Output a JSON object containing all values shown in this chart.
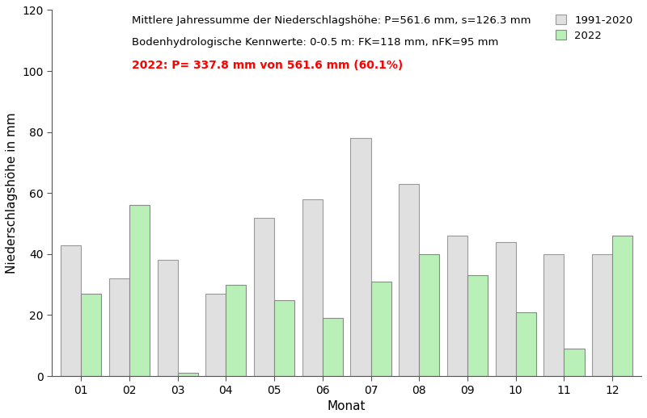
{
  "months": [
    "01",
    "02",
    "03",
    "04",
    "05",
    "06",
    "07",
    "08",
    "09",
    "10",
    "11",
    "12"
  ],
  "values_1991_2020": [
    43,
    32,
    38,
    27,
    52,
    58,
    78,
    63,
    46,
    44,
    40,
    40
  ],
  "values_2022": [
    27,
    56,
    1,
    30,
    25,
    19,
    31,
    40,
    33,
    21,
    9,
    46
  ],
  "color_gray": "#e0e0e0",
  "color_green": "#b8f0b8",
  "color_edge_gray": "#999999",
  "color_edge_green": "#888888",
  "ylim": [
    0,
    120
  ],
  "yticks": [
    0,
    20,
    40,
    60,
    80,
    100,
    120
  ],
  "xlabel": "Monat",
  "ylabel": "Niederschlagshöhe in mm",
  "annotation_line1": "Mittlere Jahressumme der Niederschlagshöhe: P=561.6 mm, s=126.3 mm",
  "annotation_line2": "Bodenhydrologische Kennwerte: 0-0.5 m: FK=118 mm, nFK=95 mm",
  "annotation_line3": "2022: P= 337.8 mm von 561.6 mm (60.1%)",
  "legend_label1": "1991-2020",
  "legend_label2": "2022",
  "bar_width": 0.42,
  "annotation_fontsize": 9.5,
  "axis_fontsize": 11,
  "tick_fontsize": 10
}
